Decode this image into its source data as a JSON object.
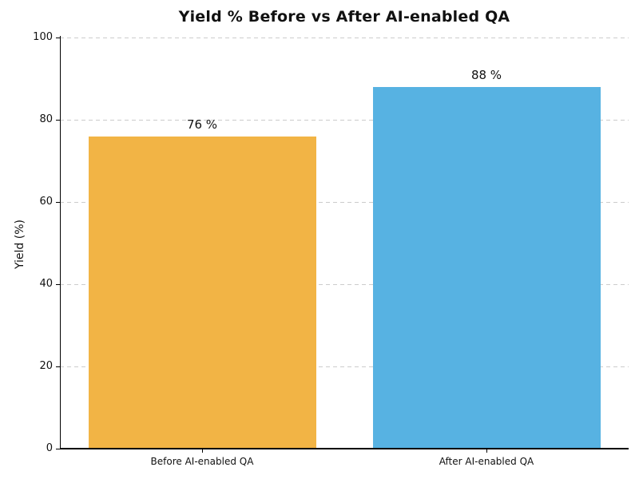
{
  "chart_data": {
    "type": "bar",
    "title": "Yield % Before vs After AI-enabled QA",
    "xlabel": "",
    "ylabel": "Yield (%)",
    "categories": [
      "Before AI-enabled QA",
      "After AI-enabled QA"
    ],
    "values": [
      76,
      88
    ],
    "value_labels": [
      "76 %",
      "88 %"
    ],
    "bar_colors": [
      "#f2b445",
      "#57b2e2"
    ],
    "ylim": [
      0,
      100
    ],
    "yticks": [
      0,
      20,
      40,
      60,
      80,
      100
    ],
    "grid": "horizontal-dashed",
    "legend_position": "none"
  },
  "colors": {
    "grid": "#cccccc",
    "axis": "#000000",
    "text": "#111111",
    "background": "#ffffff"
  }
}
